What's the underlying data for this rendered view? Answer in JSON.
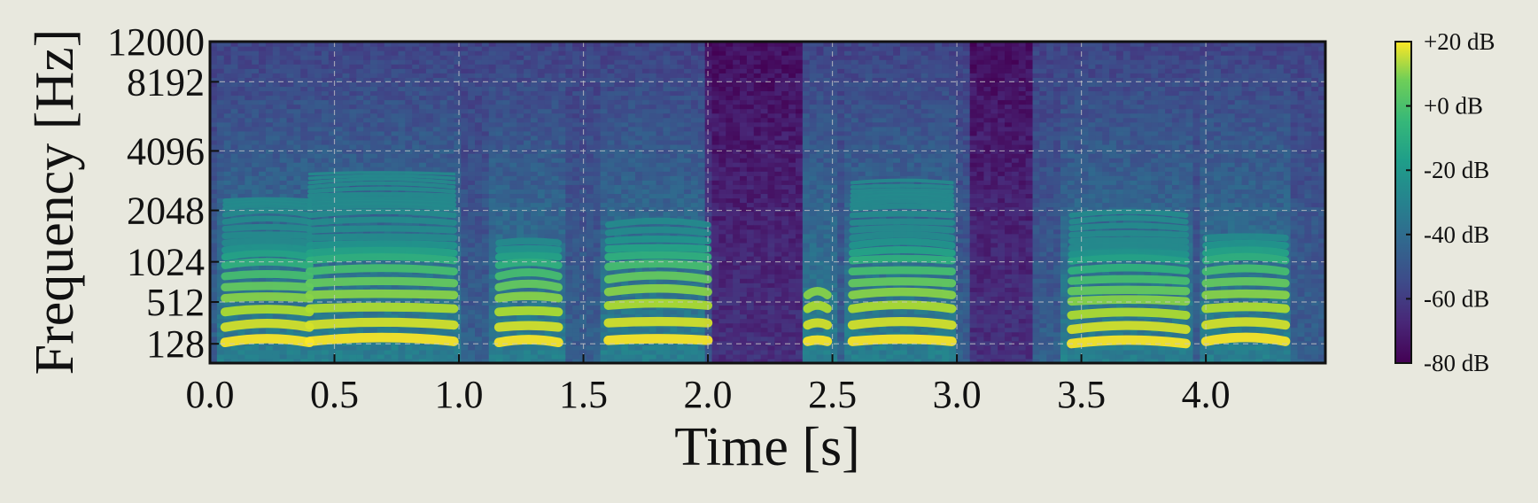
{
  "chart_data": {
    "type": "heatmap",
    "title": "",
    "xlabel": "Time [s]",
    "ylabel": "Frequency [Hz]",
    "xlim": [
      0.0,
      4.48
    ],
    "ylim": [
      0,
      12000
    ],
    "x_ticks": [
      0.0,
      0.5,
      1.0,
      1.5,
      2.0,
      2.5,
      3.0,
      3.5,
      4.0
    ],
    "x_tick_labels": [
      "0.0",
      "0.5",
      "1.0",
      "1.5",
      "2.0",
      "2.5",
      "3.0",
      "3.5",
      "4.0"
    ],
    "y_ticks": [
      128,
      512,
      1024,
      2048,
      4096,
      8192,
      12000
    ],
    "y_tick_labels": [
      "128",
      "512",
      "1024",
      "2048",
      "4096",
      "8192",
      "12000"
    ],
    "y_scale": "mel-like (non-linear)",
    "grid": true,
    "colormap": "viridis",
    "colorbar": {
      "range_db": [
        -80,
        20
      ],
      "ticks": [
        20,
        0,
        -20,
        -40,
        -60,
        -80
      ],
      "tick_labels": [
        "+20 dB",
        "+0 dB",
        "-20 dB",
        "-40 dB",
        "-60 dB",
        "-80 dB"
      ]
    },
    "voiced_segments": [
      {
        "start": 0.06,
        "end": 0.4,
        "f0_hz": 140,
        "harmonic_top_hz": 2400
      },
      {
        "start": 0.4,
        "end": 0.98,
        "f0_hz": 150,
        "harmonic_top_hz": 3400
      },
      {
        "start": 1.16,
        "end": 1.4,
        "f0_hz": 140,
        "harmonic_top_hz": 1400
      },
      {
        "start": 1.6,
        "end": 2.0,
        "f0_hz": 160,
        "harmonic_top_hz": 1800
      },
      {
        "start": 2.4,
        "end": 2.48,
        "f0_hz": 150,
        "harmonic_top_hz": 600
      },
      {
        "start": 2.58,
        "end": 2.98,
        "f0_hz": 150,
        "harmonic_top_hz": 3000
      },
      {
        "start": 3.46,
        "end": 3.92,
        "f0_hz": 130,
        "harmonic_top_hz": 2000
      },
      {
        "start": 4.0,
        "end": 4.32,
        "f0_hz": 150,
        "harmonic_top_hz": 1600
      }
    ],
    "silent_segments": [
      {
        "start": 2.0,
        "end": 2.38
      },
      {
        "start": 3.06,
        "end": 3.3
      }
    ]
  },
  "colors": {
    "background": "#e8e8de",
    "viridis_low": "#440154",
    "viridis_mid": "#21918c",
    "viridis_high": "#fde725",
    "grid": "#c8c8c8",
    "axis": "#111111"
  }
}
